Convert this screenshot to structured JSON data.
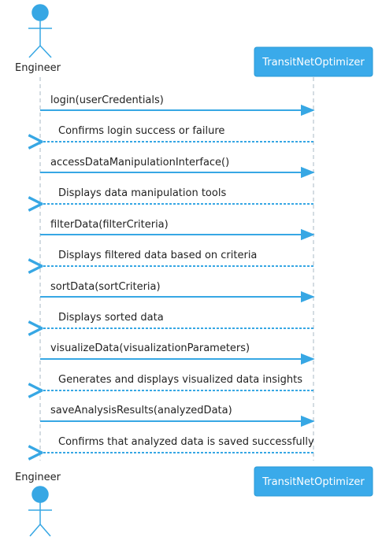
{
  "diagram": {
    "type": "sequence",
    "colors": {
      "accent": "#37a7e4",
      "box_fill": "#3aaaea",
      "box_stroke": "#2a9ad6",
      "lifeline": "#a9b8c6",
      "text": "#222222",
      "box_text": "#ffffff"
    },
    "participants": {
      "engineer": {
        "label": "Engineer",
        "icon": "actor-stick-figure-icon"
      },
      "system": {
        "label": "TransitNetOptimizer"
      }
    },
    "messages": [
      {
        "label": "login(userCredentials)",
        "kind": "call"
      },
      {
        "label": "Confirms login success or failure",
        "kind": "return"
      },
      {
        "label": "accessDataManipulationInterface()",
        "kind": "call"
      },
      {
        "label": "Displays data manipulation tools",
        "kind": "return"
      },
      {
        "label": "filterData(filterCriteria)",
        "kind": "call"
      },
      {
        "label": "Displays filtered data based on criteria",
        "kind": "return"
      },
      {
        "label": "sortData(sortCriteria)",
        "kind": "call"
      },
      {
        "label": "Displays sorted data",
        "kind": "return"
      },
      {
        "label": "visualizeData(visualizationParameters)",
        "kind": "call"
      },
      {
        "label": "Generates and displays visualized data insights",
        "kind": "return"
      },
      {
        "label": "saveAnalysisResults(analyzedData)",
        "kind": "call"
      },
      {
        "label": "Confirms that analyzed data is saved successfully",
        "kind": "return"
      }
    ]
  }
}
